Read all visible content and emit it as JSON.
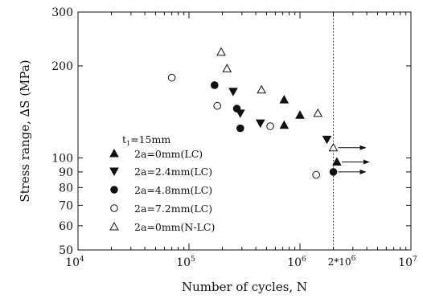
{
  "chart_data": {
    "type": "scatter",
    "xscale": "log",
    "yscale": "log",
    "xlim": [
      10000,
      10000000
    ],
    "ylim": [
      50,
      300
    ],
    "xlabel": "Number of cycles, N",
    "ylabel": "Stress range, ∆S (MPa)",
    "x_ticks": [
      {
        "value": 10000,
        "base": "10",
        "exp": "4"
      },
      {
        "value": 100000,
        "base": "10",
        "exp": "5"
      },
      {
        "value": 1000000,
        "base": "10",
        "exp": "6"
      },
      {
        "value": 10000000,
        "base": "10",
        "exp": "7"
      }
    ],
    "y_ticks": [
      {
        "value": 50,
        "label": "50"
      },
      {
        "value": 60,
        "label": "60"
      },
      {
        "value": 70,
        "label": "70"
      },
      {
        "value": 80,
        "label": "80"
      },
      {
        "value": 90,
        "label": "90"
      },
      {
        "value": 100,
        "label": "100"
      },
      {
        "value": 200,
        "label": "200"
      },
      {
        "value": 300,
        "label": "300"
      }
    ],
    "grid": false,
    "legend_title": {
      "prefix": "t",
      "sub": "1",
      "suffix": "=15mm"
    },
    "legend_position": "left",
    "series": [
      {
        "name": "2a=0mm(LC)",
        "marker": "triangle-up",
        "filled": true,
        "points": [
          [
            1000000,
            138
          ],
          [
            720000,
            128
          ],
          [
            720000,
            155
          ],
          [
            2150000,
            97
          ]
        ]
      },
      {
        "name": "2a=2.4mm(LC)",
        "marker": "triangle-down",
        "filled": true,
        "points": [
          [
            250000,
            165
          ],
          [
            290000,
            140
          ],
          [
            440000,
            130
          ],
          [
            1750000,
            115
          ]
        ]
      },
      {
        "name": "2a=4.8mm(LC)",
        "marker": "circle",
        "filled": true,
        "points": [
          [
            170000,
            173
          ],
          [
            270000,
            145
          ],
          [
            290000,
            125
          ],
          [
            2000000,
            90
          ]
        ]
      },
      {
        "name": "2a=7.2mm(LC)",
        "marker": "circle",
        "filled": false,
        "points": [
          [
            70000,
            183
          ],
          [
            180000,
            148
          ],
          [
            540000,
            127
          ],
          [
            1400000,
            88
          ]
        ]
      },
      {
        "name": "2a=0mm(N-LC)",
        "marker": "triangle-up",
        "filled": false,
        "points": [
          [
            195000,
            222
          ],
          [
            220000,
            196
          ],
          [
            450000,
            167
          ],
          [
            1450000,
            140
          ],
          [
            2000000,
            108
          ]
        ]
      }
    ],
    "runouts": [
      [
        2000000,
        108
      ],
      [
        2150000,
        97
      ],
      [
        2000000,
        90
      ]
    ],
    "reference_line": {
      "x": 2000000,
      "style": "dotted"
    },
    "annotation": {
      "base": "2*10",
      "exp": "6"
    }
  }
}
